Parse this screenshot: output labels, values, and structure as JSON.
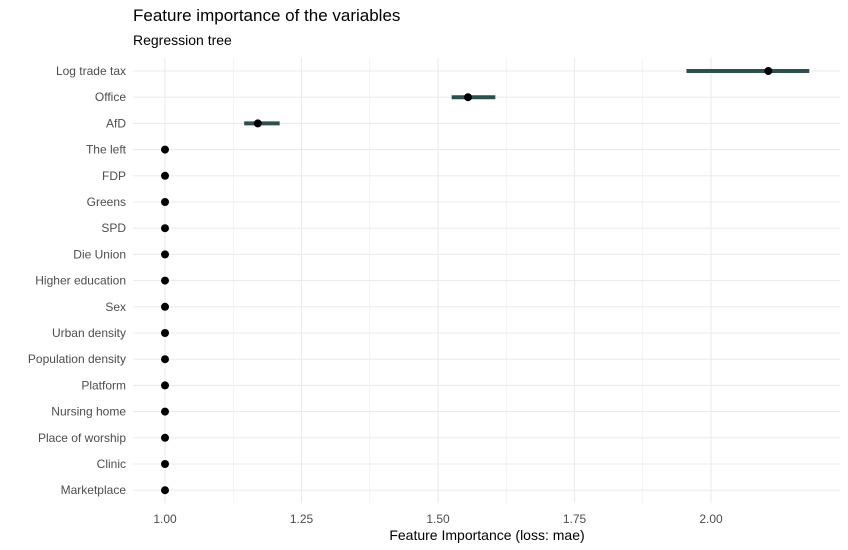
{
  "chart_data": {
    "type": "dot-interval",
    "title": "Feature importance of the variables",
    "subtitle": "Regression tree",
    "xlabel": "Feature Importance (loss: mae)",
    "ylabel": "",
    "xlim": [
      0.94,
      2.23
    ],
    "x_ticks": [
      "1.00",
      "1.25",
      "1.50",
      "1.75",
      "2.00"
    ],
    "x_tick_values": [
      1.0,
      1.25,
      1.5,
      1.75,
      2.0
    ],
    "grid": true,
    "features": [
      "Log trade tax",
      "Office",
      "AfD",
      "The left",
      "FDP",
      "Greens",
      "SPD",
      "Die Union",
      "Higher education",
      "Sex",
      "Urban density",
      "Population density",
      "Platform",
      "Nursing home",
      "Place of worship",
      "Clinic",
      "Marketplace"
    ],
    "importance": [
      2.105,
      1.555,
      1.17,
      1.0,
      1.0,
      1.0,
      1.0,
      1.0,
      1.0,
      1.0,
      1.0,
      1.0,
      1.0,
      1.0,
      1.0,
      1.0,
      1.0
    ],
    "lower": [
      1.955,
      1.525,
      1.145,
      1.0,
      1.0,
      1.0,
      1.0,
      1.0,
      1.0,
      1.0,
      1.0,
      1.0,
      1.0,
      1.0,
      1.0,
      1.0,
      1.0
    ],
    "upper": [
      2.18,
      1.605,
      1.21,
      1.0,
      1.0,
      1.0,
      1.0,
      1.0,
      1.0,
      1.0,
      1.0,
      1.0,
      1.0,
      1.0,
      1.0,
      1.0,
      1.0
    ],
    "colors": {
      "interval": "#2f4f4f",
      "point": "#000000",
      "grid": "#ebebeb",
      "text": "#4d4d4d"
    }
  }
}
